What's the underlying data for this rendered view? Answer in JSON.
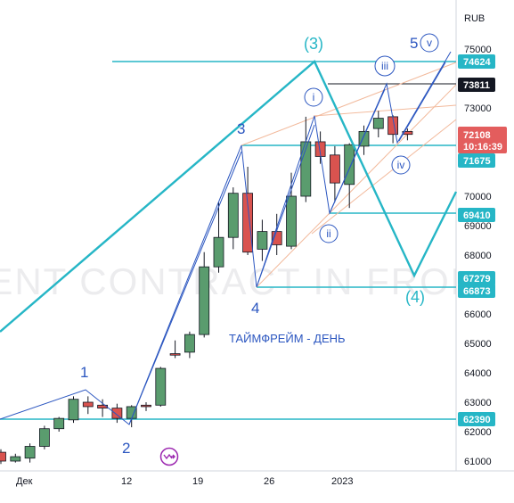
{
  "chart_data": {
    "type": "candlestick",
    "currency": "RUB",
    "watermark": "RENT CONTRACT IN FRONT)",
    "timeframe_label": "ТАЙМФРЕЙМ - ДЕНЬ",
    "x_ticks": [
      "Дек",
      "12",
      "19",
      "26",
      "2023"
    ],
    "y_ticks": [
      61000,
      62000,
      63000,
      64000,
      65000,
      66000,
      67000,
      68000,
      69000,
      70000,
      71000,
      72000,
      73000,
      74000,
      75000
    ],
    "ylim": [
      60600,
      76400
    ],
    "price_labels": [
      {
        "value": "74624",
        "style": "cyan"
      },
      {
        "value": "73811",
        "style": "dark"
      },
      {
        "value": "71675",
        "style": "cyan"
      },
      {
        "value": "69410",
        "style": "cyan"
      },
      {
        "value": "67279",
        "style": "cyan"
      },
      {
        "value": "66873",
        "style": "cyan"
      },
      {
        "value": "62390",
        "style": "cyan"
      }
    ],
    "last_price": {
      "value": "72108",
      "countdown": "10:16:39"
    },
    "candles": [
      {
        "o": 61300,
        "h": 61400,
        "l": 60900,
        "c": 61000
      },
      {
        "o": 61000,
        "h": 61250,
        "l": 60950,
        "c": 61150
      },
      {
        "o": 61100,
        "h": 61600,
        "l": 60950,
        "c": 61500
      },
      {
        "o": 61500,
        "h": 62200,
        "l": 61400,
        "c": 62100
      },
      {
        "o": 62100,
        "h": 62500,
        "l": 62000,
        "c": 62450
      },
      {
        "o": 62400,
        "h": 63200,
        "l": 62300,
        "c": 63100
      },
      {
        "o": 63000,
        "h": 63200,
        "l": 62600,
        "c": 62850
      },
      {
        "o": 62900,
        "h": 63100,
        "l": 62500,
        "c": 62800
      },
      {
        "o": 62800,
        "h": 62950,
        "l": 62300,
        "c": 62450
      },
      {
        "o": 62450,
        "h": 62900,
        "l": 62150,
        "c": 62850
      },
      {
        "o": 62900,
        "h": 63000,
        "l": 62700,
        "c": 62850
      },
      {
        "o": 62900,
        "h": 64200,
        "l": 62850,
        "c": 64150
      },
      {
        "o": 64650,
        "h": 65100,
        "l": 64500,
        "c": 64600
      },
      {
        "o": 64700,
        "h": 65400,
        "l": 64500,
        "c": 65300
      },
      {
        "o": 65300,
        "h": 68100,
        "l": 65200,
        "c": 67600
      },
      {
        "o": 67600,
        "h": 69800,
        "l": 67400,
        "c": 68600
      },
      {
        "o": 68600,
        "h": 70300,
        "l": 68200,
        "c": 70100
      },
      {
        "o": 70100,
        "h": 71000,
        "l": 68000,
        "c": 68100
      },
      {
        "o": 68200,
        "h": 69200,
        "l": 67800,
        "c": 68800
      },
      {
        "o": 68800,
        "h": 69400,
        "l": 68000,
        "c": 68350
      },
      {
        "o": 68300,
        "h": 70800,
        "l": 68200,
        "c": 70000
      },
      {
        "o": 70000,
        "h": 72700,
        "l": 69800,
        "c": 71850
      },
      {
        "o": 71850,
        "h": 72200,
        "l": 71100,
        "c": 71350
      },
      {
        "o": 71400,
        "h": 71700,
        "l": 69800,
        "c": 70450
      },
      {
        "o": 70400,
        "h": 71800,
        "l": 69600,
        "c": 71750
      },
      {
        "o": 71700,
        "h": 72400,
        "l": 71400,
        "c": 72200
      },
      {
        "o": 72300,
        "h": 72900,
        "l": 72000,
        "c": 72650
      },
      {
        "o": 72700,
        "h": 72750,
        "l": 71800,
        "c": 72100
      },
      {
        "o": 72200,
        "h": 72300,
        "l": 71900,
        "c": 72100
      }
    ],
    "wave_labels_major": [
      "(3)",
      "(4)"
    ],
    "wave_labels_mid": [
      "1",
      "2",
      "3",
      "4",
      "5"
    ],
    "wave_labels_sub": [
      "i",
      "ii",
      "iii",
      "iv",
      "v"
    ]
  }
}
